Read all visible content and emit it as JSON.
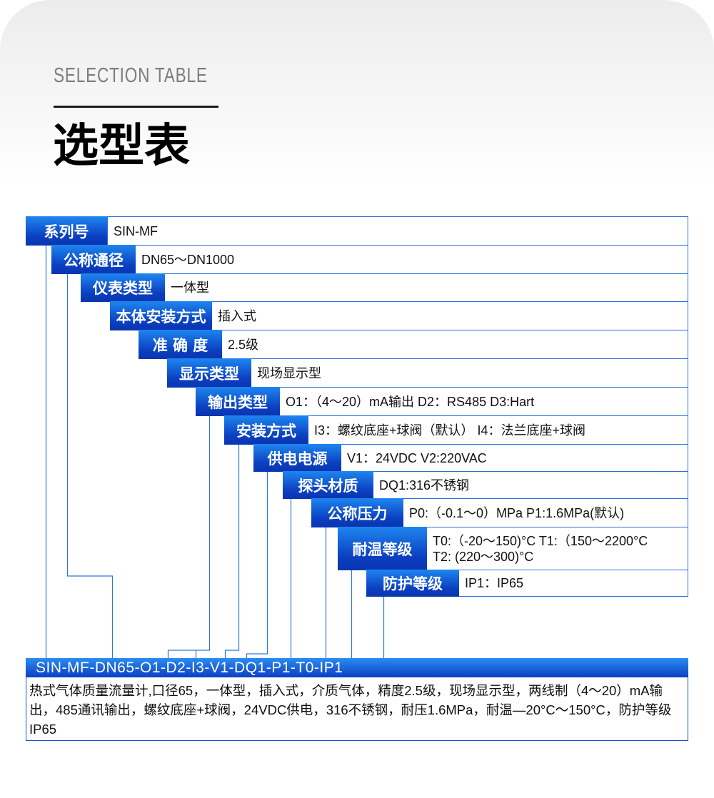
{
  "header": {
    "eyebrow": "SELECTION TABLE",
    "title": "选型表"
  },
  "rows": [
    {
      "label": "系列号",
      "value": [
        "SIN-MF"
      ]
    },
    {
      "label": "公称通径",
      "value": [
        "DN65～DN1000"
      ]
    },
    {
      "label": "仪表类型",
      "value": [
        "一体型"
      ]
    },
    {
      "label": "本体安装方式",
      "value": [
        "插入式"
      ]
    },
    {
      "label": "准 确 度",
      "value": [
        "2.5级"
      ]
    },
    {
      "label": "显示类型",
      "value": [
        "现场显示型"
      ]
    },
    {
      "label": "输出类型",
      "value": [
        "O1：（4～20）mA输出  D2：RS485 D3:Hart"
      ]
    },
    {
      "label": "安装方式",
      "value": [
        "I3：螺纹底座+球阀（默认） I4：法兰底座+球阀"
      ]
    },
    {
      "label": "供电电源",
      "value": [
        "V1：24VDC V2:220VAC"
      ]
    },
    {
      "label": "探头材质",
      "value": [
        "DQ1:316不锈钢"
      ]
    },
    {
      "label": "公称压力",
      "value": [
        "P0:（-0.1～0）MPa P1:1.6MPa(默认)"
      ]
    },
    {
      "label": "耐温等级",
      "value": [
        "T0:（-20～150)°C T1:（150～2200°C",
        "T2: (220～300)°C"
      ]
    },
    {
      "label": "防护等级",
      "value": [
        "IP1：IP65"
      ]
    }
  ],
  "example": {
    "code": "SIN-MF-DN65-O1-D2-I3-V1-DQ1-P1-T0-IP1",
    "description": "热式气体质量流量计,口径65，一体型，插入式，介质气体，精度2.5级，现场显示型，两线制（4～20）mA输出，485通讯输出，螺纹底座+球阀，24VDC供电，316不锈钢，耐压1.6MPa，耐温—20°C～150°C，防护等级IP65"
  },
  "colors": {
    "accent": "#0b3fc0",
    "accent_light": "#1e86f0",
    "line": "#2a6fd8"
  }
}
